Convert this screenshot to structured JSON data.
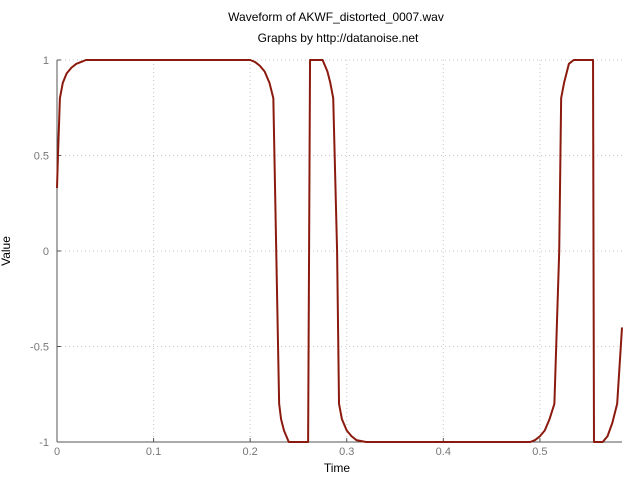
{
  "chart_data": {
    "type": "line",
    "title": "Waveform of AKWF_distorted_0007.wav",
    "subtitle": "Graphs by http://datanoise.net",
    "xlabel": "Time",
    "ylabel": "Value",
    "xlim": [
      0,
      0.585
    ],
    "ylim": [
      -1,
      1
    ],
    "xticks": [
      0,
      0.1,
      0.2,
      0.3,
      0.4,
      0.5
    ],
    "xtick_labels": [
      "0",
      "0.1",
      "0.2",
      "0.3",
      "0.4",
      "0.5"
    ],
    "yticks": [
      1,
      0.5,
      0,
      -0.5,
      -1
    ],
    "ytick_labels": [
      "1",
      "0.5",
      "0",
      "-0.5",
      "-1"
    ],
    "grid": true,
    "line_color": "#8b1a0e",
    "series": [
      {
        "x": [
          0,
          0.001,
          0.003,
          0.006,
          0.01,
          0.015,
          0.02,
          0.025,
          0.03,
          0.1,
          0.2,
          0.205,
          0.21,
          0.215,
          0.22,
          0.224,
          0.227,
          0.23,
          0.232,
          0.235,
          0.24,
          0.245,
          0.25,
          0.255,
          0.26,
          0.262,
          0.265,
          0.27,
          0.275,
          0.28,
          0.283,
          0.286,
          0.29,
          0.292,
          0.295,
          0.3,
          0.305,
          0.31,
          0.32,
          0.4,
          0.49,
          0.495,
          0.5,
          0.505,
          0.51,
          0.515,
          0.52,
          0.522,
          0.525,
          0.528,
          0.53,
          0.535,
          0.54,
          0.545,
          0.55,
          0.555,
          0.556,
          0.56,
          0.565,
          0.57,
          0.575,
          0.58,
          0.585
        ],
        "y": [
          0.33,
          0.5,
          0.8,
          0.88,
          0.93,
          0.96,
          0.98,
          0.99,
          1.0,
          1.0,
          1.0,
          0.99,
          0.97,
          0.94,
          0.88,
          0.8,
          0.0,
          -0.8,
          -0.88,
          -0.94,
          -1.0,
          -1.0,
          -1.0,
          -1.0,
          -1.0,
          1.0,
          1.0,
          1.0,
          1.0,
          0.94,
          0.88,
          0.8,
          0.0,
          -0.8,
          -0.88,
          -0.94,
          -0.97,
          -0.99,
          -1.0,
          -1.0,
          -1.0,
          -0.99,
          -0.97,
          -0.94,
          -0.88,
          -0.8,
          0.0,
          0.8,
          0.88,
          0.94,
          0.98,
          1.0,
          1.0,
          1.0,
          1.0,
          1.0,
          -1.0,
          -1.0,
          -1.0,
          -0.97,
          -0.9,
          -0.8,
          -0.4
        ]
      }
    ]
  }
}
